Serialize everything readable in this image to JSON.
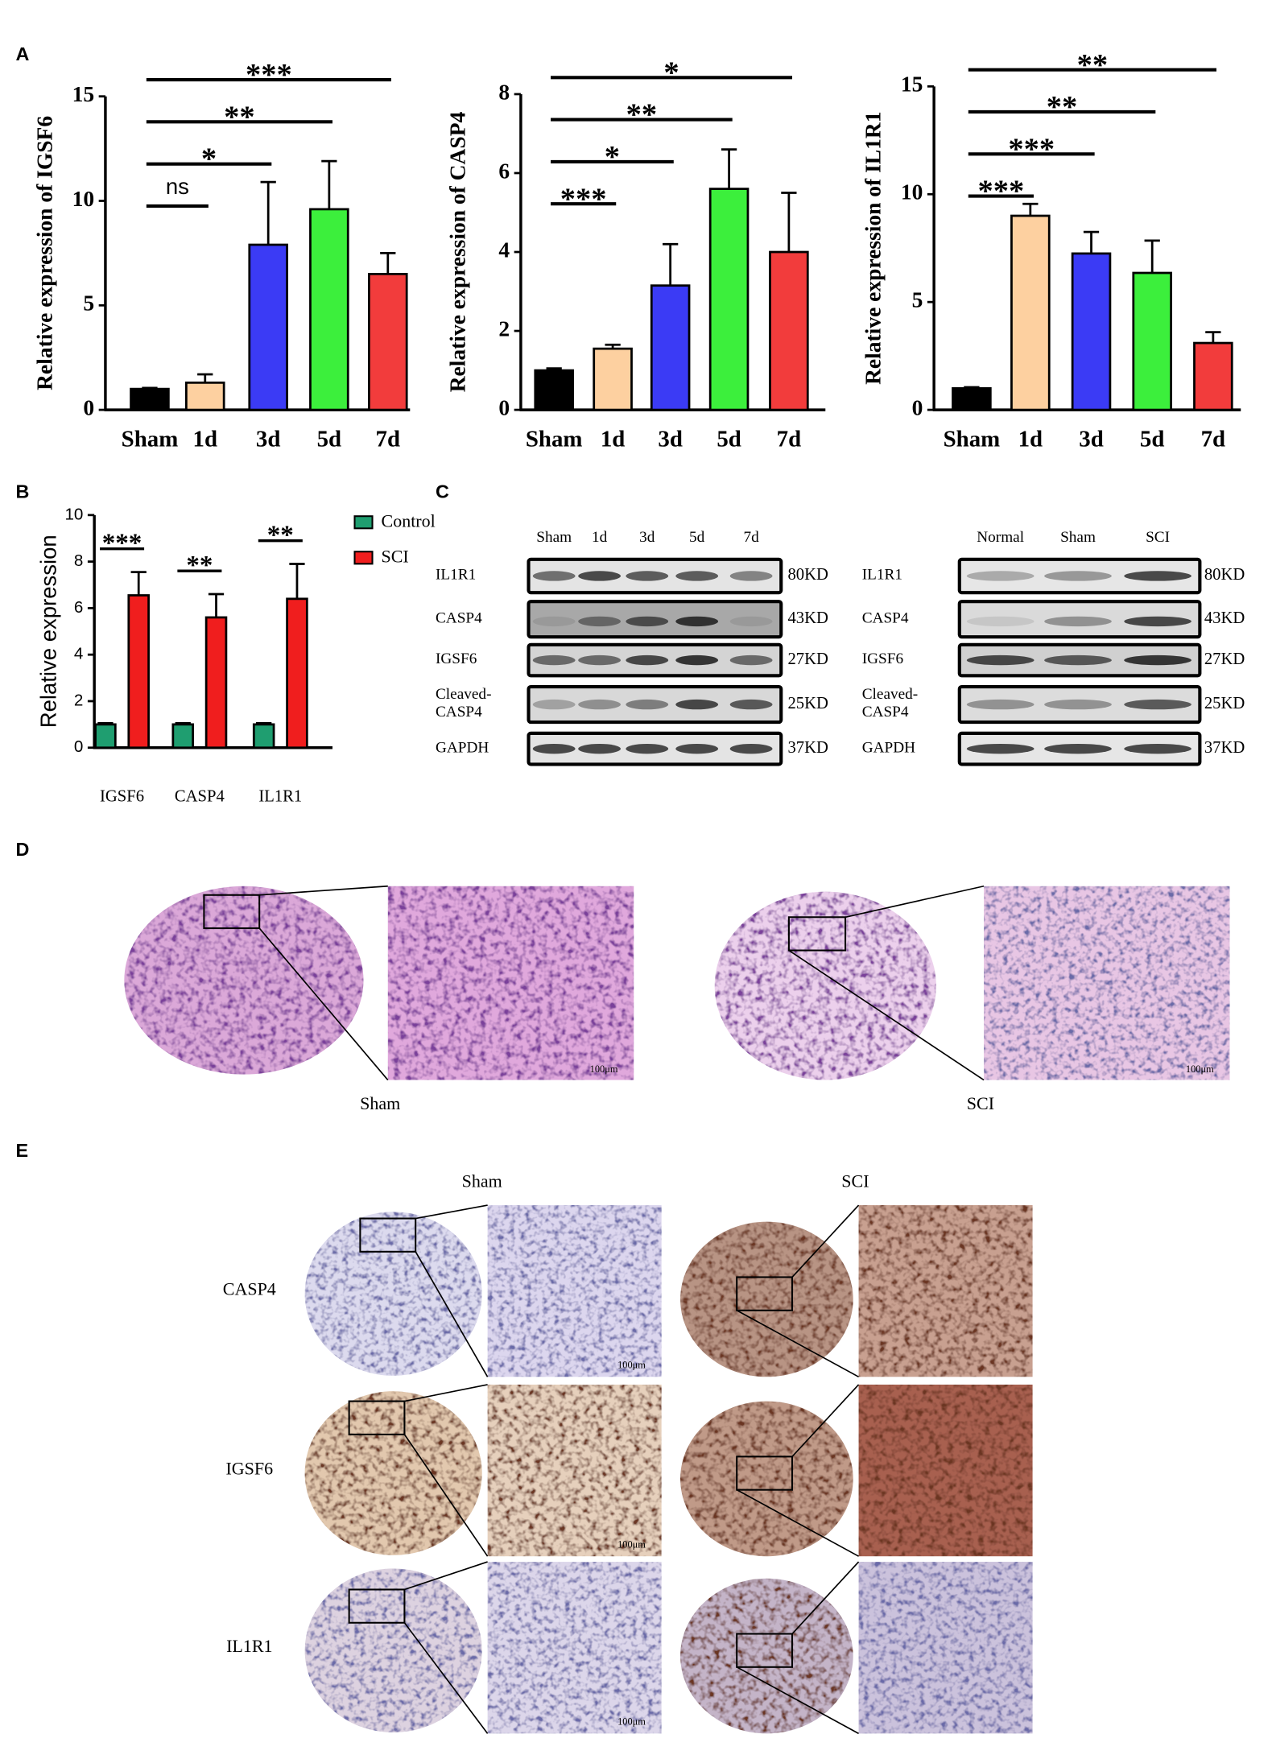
{
  "panel_labels": [
    "A",
    "B",
    "C",
    "D",
    "E"
  ],
  "chart_data": [
    {
      "type": "bar",
      "y_label": "Relative expression of IGSF6",
      "categories": [
        "Sham",
        "1d",
        "3d",
        "5d",
        "7d"
      ],
      "values": [
        1.0,
        1.3,
        7.9,
        9.6,
        6.5
      ],
      "errors": [
        0.05,
        0.4,
        3.0,
        2.3,
        1.0
      ],
      "colors": [
        "#000000",
        "#fdd0a0",
        "#3b3bf5",
        "#3cef3c",
        "#f23c3c"
      ],
      "ylim": [
        0,
        15
      ],
      "yticks": [
        0,
        5,
        10,
        15
      ],
      "significance": [
        {
          "label": "ns",
          "pair": [
            0,
            1
          ]
        },
        {
          "label": "*",
          "pair": [
            0,
            2
          ]
        },
        {
          "label": "**",
          "pair": [
            0,
            3
          ]
        },
        {
          "label": "***",
          "pair": [
            0,
            4
          ]
        }
      ]
    },
    {
      "type": "bar",
      "y_label": "Relative expression of CASP4",
      "categories": [
        "Sham",
        "1d",
        "3d",
        "5d",
        "7d"
      ],
      "values": [
        1.0,
        1.55,
        3.15,
        5.6,
        4.0
      ],
      "errors": [
        0.05,
        0.1,
        1.05,
        1.0,
        1.5
      ],
      "colors": [
        "#000000",
        "#fdd0a0",
        "#3b3bf5",
        "#3cef3c",
        "#f23c3c"
      ],
      "ylim": [
        0,
        8
      ],
      "yticks": [
        0,
        2,
        4,
        6,
        8
      ],
      "significance": [
        {
          "label": "***",
          "pair": [
            0,
            1
          ]
        },
        {
          "label": "*",
          "pair": [
            0,
            2
          ]
        },
        {
          "label": "**",
          "pair": [
            0,
            3
          ]
        },
        {
          "label": "*",
          "pair": [
            0,
            4
          ]
        }
      ]
    },
    {
      "type": "bar",
      "y_label": "Relative expression of IL1R1",
      "categories": [
        "Sham",
        "1d",
        "3d",
        "5d",
        "7d"
      ],
      "values": [
        1.0,
        9.0,
        7.25,
        6.35,
        3.1
      ],
      "errors": [
        0.05,
        0.55,
        1.0,
        1.5,
        0.5
      ],
      "colors": [
        "#000000",
        "#fdd0a0",
        "#3b3bf5",
        "#3cef3c",
        "#f23c3c"
      ],
      "ylim": [
        0,
        15
      ],
      "yticks": [
        0,
        5,
        10,
        15
      ],
      "significance": [
        {
          "label": "***",
          "pair": [
            0,
            1
          ]
        },
        {
          "label": "***",
          "pair": [
            0,
            2
          ]
        },
        {
          "label": "**",
          "pair": [
            0,
            3
          ]
        },
        {
          "label": "**",
          "pair": [
            0,
            4
          ]
        }
      ]
    },
    {
      "type": "bar",
      "y_label": "Relative expression",
      "categories": [
        "IGSF6",
        "CASP4",
        "IL1R1"
      ],
      "series": [
        {
          "name": "Control",
          "color": "#1f9e70",
          "values": [
            1.0,
            1.0,
            1.0
          ],
          "errors": [
            0.05,
            0.05,
            0.05
          ]
        },
        {
          "name": "SCI",
          "color": "#f01e1e",
          "values": [
            6.55,
            5.6,
            6.4
          ],
          "errors": [
            1.0,
            1.0,
            1.5
          ]
        }
      ],
      "ylim": [
        0,
        10
      ],
      "yticks": [
        0,
        2,
        4,
        6,
        8,
        10
      ],
      "legend": "right",
      "significance": [
        "***",
        "**",
        "**"
      ]
    }
  ],
  "western_blots": [
    {
      "lanes": [
        "Sham",
        "1d",
        "3d",
        "5d",
        "7d"
      ],
      "rows": [
        {
          "protein": "IL1R1",
          "size": "80KD"
        },
        {
          "protein": "CASP4",
          "size": "43KD"
        },
        {
          "protein": "IGSF6",
          "size": "27KD"
        },
        {
          "protein": "Cleaved-CASP4",
          "size": "25KD"
        },
        {
          "protein": "GAPDH",
          "size": "37KD"
        }
      ]
    },
    {
      "lanes": [
        "Normal",
        "Sham",
        "SCI"
      ],
      "rows": [
        {
          "protein": "IL1R1",
          "size": "80KD"
        },
        {
          "protein": "CASP4",
          "size": "43KD"
        },
        {
          "protein": "IGSF6",
          "size": "27KD"
        },
        {
          "protein": "Cleaved-CASP4",
          "size": "25KD"
        },
        {
          "protein": "GAPDH",
          "size": "37KD"
        }
      ]
    }
  ],
  "histology": {
    "groups": [
      "Sham",
      "SCI"
    ],
    "scale_bar": "100μm"
  },
  "ihc": {
    "columns": [
      "Sham",
      "SCI"
    ],
    "rows": [
      "CASP4",
      "IGSF6",
      "IL1R1"
    ],
    "scale_bar": "100μm"
  }
}
